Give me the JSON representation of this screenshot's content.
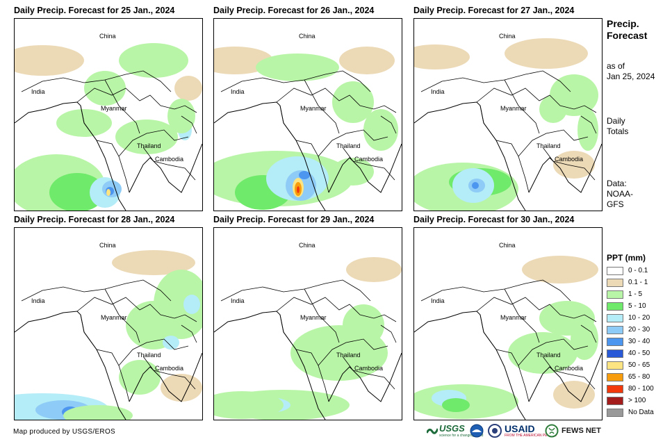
{
  "panels": [
    {
      "title": "Daily Precip. Forecast for 25 Jan., 2024",
      "labels": {
        "china": "China",
        "india": "India",
        "myanmar": "Myanmar",
        "thailand": "Thailand",
        "cambodia": "Cambodia"
      }
    },
    {
      "title": "Daily Precip. Forecast for 26 Jan., 2024",
      "labels": {
        "china": "China",
        "india": "India",
        "myanmar": "Myanmar",
        "thailand": "Thailand",
        "cambodia": "Cambodia"
      }
    },
    {
      "title": "Daily Precip. Forecast for 27 Jan., 2024",
      "labels": {
        "china": "China",
        "india": "India",
        "myanmar": "Myanmar",
        "thailand": "Thailand",
        "cambodia": "Cambodia"
      }
    },
    {
      "title": "Daily Precip. Forecast for 28 Jan., 2024",
      "labels": {
        "china": "China",
        "india": "India",
        "myanmar": "Myanmar",
        "thailand": "Thailand",
        "cambodia": "Cambodia"
      }
    },
    {
      "title": "Daily Precip. Forecast for 29 Jan., 2024",
      "labels": {
        "china": "China",
        "india": "India",
        "myanmar": "Myanmar",
        "thailand": "Thailand",
        "cambodia": "Cambodia"
      }
    },
    {
      "title": "Daily Precip. Forecast for 30 Jan., 2024",
      "labels": {
        "china": "China",
        "india": "India",
        "myanmar": "Myanmar",
        "thailand": "Thailand",
        "cambodia": "Cambodia"
      }
    }
  ],
  "sidebar": {
    "title_line1": "Precip.",
    "title_line2": "Forecast",
    "asof_line1": "as of",
    "asof_line2": "Jan 25, 2024",
    "daily_line1": "Daily",
    "daily_line2": "Totals",
    "data_line1": "Data:",
    "data_line2": "NOAA-",
    "data_line3": "GFS"
  },
  "legend": {
    "title": "PPT (mm)",
    "items": [
      {
        "label": "0 - 0.1",
        "color": "#ffffff"
      },
      {
        "label": "0.1 - 1",
        "color": "#ecd9b6"
      },
      {
        "label": "1 - 5",
        "color": "#b9f5a7"
      },
      {
        "label": "5 - 10",
        "color": "#6fea6a"
      },
      {
        "label": "10 - 20",
        "color": "#b4ecf7"
      },
      {
        "label": "20 - 30",
        "color": "#8ecbf6"
      },
      {
        "label": "30 - 40",
        "color": "#4d96f0"
      },
      {
        "label": "40 - 50",
        "color": "#2a59d8"
      },
      {
        "label": "50 - 65",
        "color": "#fbe481"
      },
      {
        "label": "65 - 80",
        "color": "#f79d0d"
      },
      {
        "label": "80 - 100",
        "color": "#f2390c"
      },
      {
        "label": "> 100",
        "color": "#a51c1c"
      },
      {
        "label": "No Data",
        "color": "#999999"
      }
    ]
  },
  "footer": {
    "credit": "Map produced by USGS/EROS",
    "usgs": "USGS",
    "usgs_tagline": "science for a changing world",
    "usaid": "USAID",
    "usaid_tagline": "FROM THE AMERICAN PEOPLE",
    "fewsnet": "FEWS NET"
  }
}
